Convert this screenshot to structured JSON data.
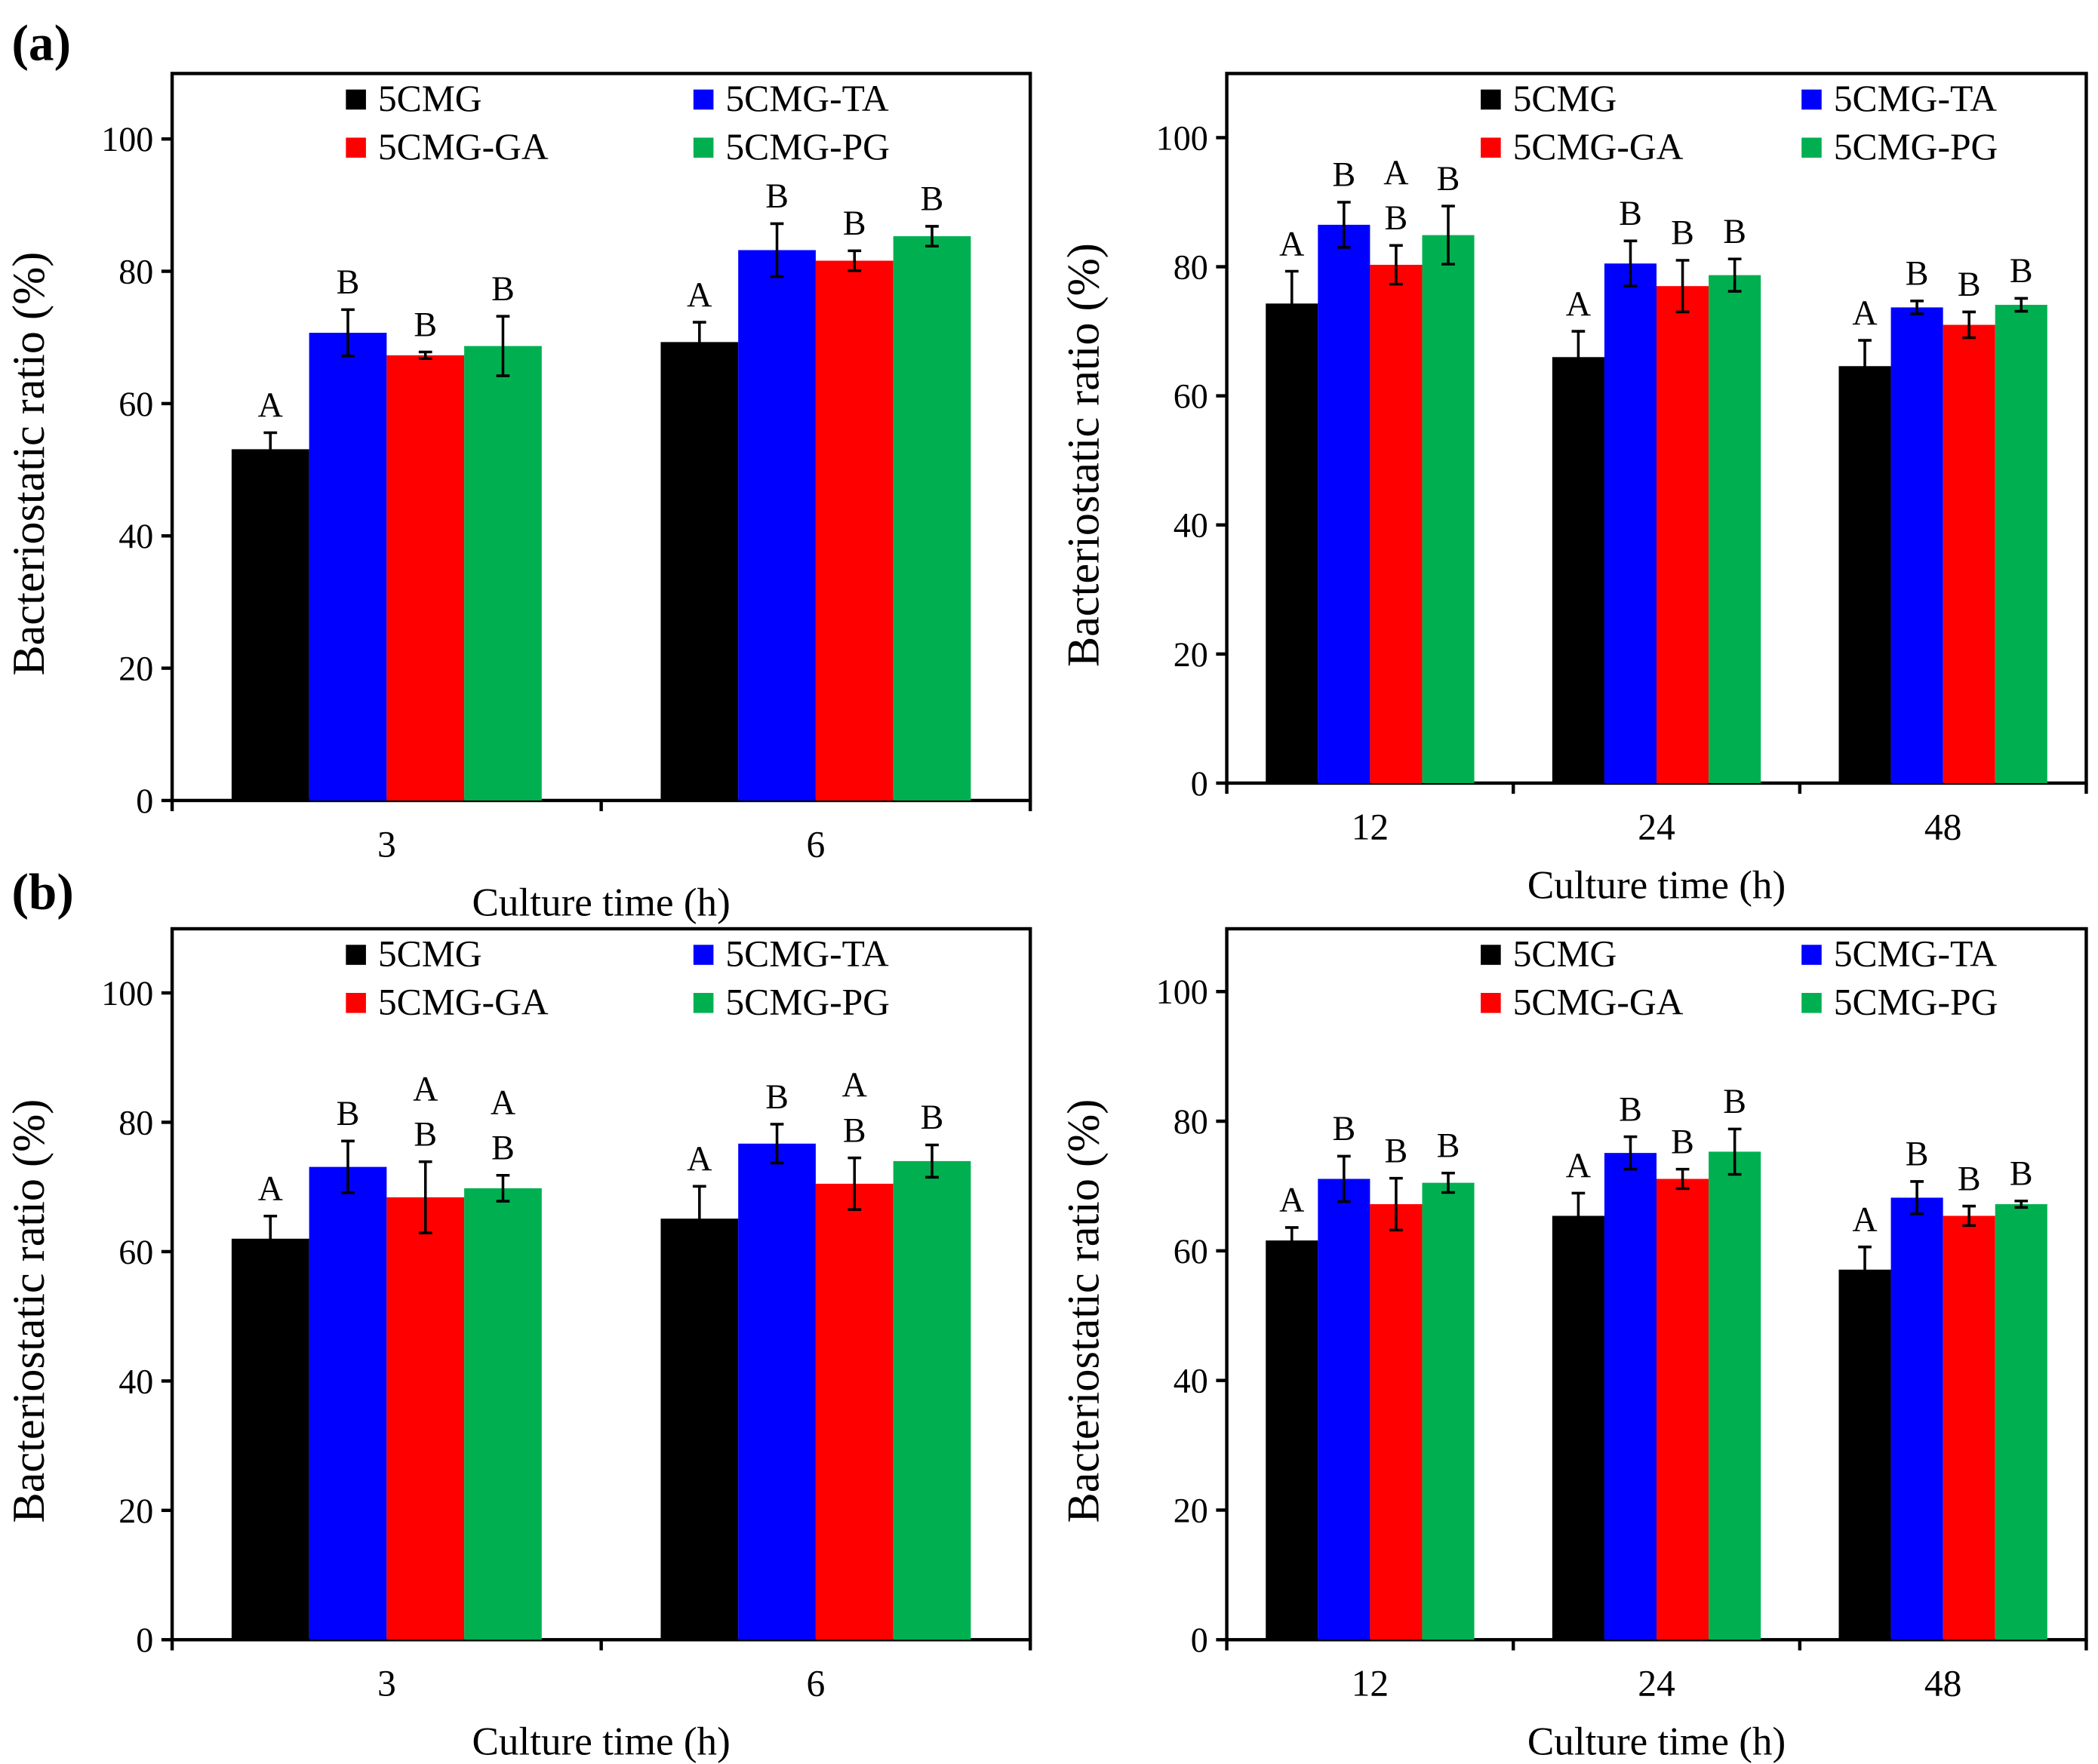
{
  "panel_labels": [
    "(a)",
    "(b)"
  ],
  "colors": {
    "5CMG": "#000000",
    "5CMG-TA": "#0000ff",
    "5CMG-GA": "#ff0000",
    "5CMG-PG": "#00b050"
  },
  "chart_data": [
    {
      "type": "bar",
      "panel": "(a)",
      "title": "",
      "xlabel": "Culture time (h)",
      "ylabel": "Bacteriostatic ratio (%)",
      "ylim": [
        0,
        110
      ],
      "yticks": [
        0,
        20,
        40,
        60,
        80,
        100
      ],
      "legend": "top",
      "categories": [
        "3",
        "6"
      ],
      "series": [
        {
          "name": "5CMG",
          "color": "#000000",
          "values": [
            53.1,
            69.3
          ],
          "errors": [
            2.5,
            3.0
          ],
          "letters": [
            [
              "A"
            ],
            [
              "A"
            ]
          ]
        },
        {
          "name": "5CMG-TA",
          "color": "#0000ff",
          "values": [
            70.7,
            83.2
          ],
          "errors": [
            3.5,
            4.0
          ],
          "letters": [
            [
              "B"
            ],
            [
              "B"
            ]
          ]
        },
        {
          "name": "5CMG-GA",
          "color": "#ff0000",
          "values": [
            67.3,
            81.6
          ],
          "errors": [
            0.5,
            1.5
          ],
          "letters": [
            [
              "B"
            ],
            [
              "B"
            ]
          ]
        },
        {
          "name": "5CMG-PG",
          "color": "#00b050",
          "values": [
            68.7,
            85.3
          ],
          "errors": [
            4.5,
            1.5
          ],
          "letters": [
            [
              "B"
            ],
            [
              "B"
            ]
          ]
        }
      ]
    },
    {
      "type": "bar",
      "panel": "(a)",
      "title": "",
      "xlabel": "Culture time (h)",
      "ylabel": "Bacteriostatic ratio (%)",
      "ylim": [
        0,
        110
      ],
      "yticks": [
        0,
        20,
        40,
        60,
        80,
        100
      ],
      "legend": "top",
      "categories": [
        "12",
        "24",
        "48"
      ],
      "series": [
        {
          "name": "5CMG",
          "color": "#000000",
          "values": [
            74.3,
            66.0,
            64.6
          ],
          "errors": [
            5.0,
            4.0,
            4.0
          ],
          "letters": [
            [
              "A"
            ],
            [
              "A"
            ],
            [
              "A"
            ]
          ]
        },
        {
          "name": "5CMG-TA",
          "color": "#0000ff",
          "values": [
            86.5,
            80.5,
            73.7
          ],
          "errors": [
            3.5,
            3.5,
            1.0
          ],
          "letters": [
            [
              "B"
            ],
            [
              "B"
            ],
            [
              "B"
            ]
          ]
        },
        {
          "name": "5CMG-GA",
          "color": "#ff0000",
          "values": [
            80.3,
            77.0,
            71.0
          ],
          "errors": [
            3.0,
            4.0,
            2.0
          ],
          "letters": [
            [
              "A",
              "B"
            ],
            [
              "B"
            ],
            [
              "B"
            ]
          ]
        },
        {
          "name": "5CMG-PG",
          "color": "#00b050",
          "values": [
            84.9,
            78.7,
            74.1
          ],
          "errors": [
            4.5,
            2.5,
            1.0
          ],
          "letters": [
            [
              "B"
            ],
            [
              "B"
            ],
            [
              "B"
            ]
          ]
        }
      ]
    },
    {
      "type": "bar",
      "panel": "(b)",
      "title": "",
      "xlabel": "Culture time (h)",
      "ylabel": "Bacteriostatic ratio (%)",
      "ylim": [
        0,
        110
      ],
      "yticks": [
        0,
        20,
        40,
        60,
        80,
        100
      ],
      "legend": "top",
      "categories": [
        "3",
        "6"
      ],
      "series": [
        {
          "name": "5CMG",
          "color": "#000000",
          "values": [
            62.0,
            65.1
          ],
          "errors": [
            3.5,
            5.0
          ],
          "letters": [
            [
              "A"
            ],
            [
              "A"
            ]
          ]
        },
        {
          "name": "5CMG-TA",
          "color": "#0000ff",
          "values": [
            73.1,
            76.7
          ],
          "errors": [
            4.0,
            3.0
          ],
          "letters": [
            [
              "B"
            ],
            [
              "B"
            ]
          ]
        },
        {
          "name": "5CMG-GA",
          "color": "#ff0000",
          "values": [
            68.4,
            70.5
          ],
          "errors": [
            5.5,
            4.0
          ],
          "letters": [
            [
              "A",
              "B"
            ],
            [
              "A",
              "B"
            ]
          ]
        },
        {
          "name": "5CMG-PG",
          "color": "#00b050",
          "values": [
            69.8,
            74.0
          ],
          "errors": [
            2.0,
            2.5
          ],
          "letters": [
            [
              "A",
              "B"
            ],
            [
              "B"
            ]
          ]
        }
      ]
    },
    {
      "type": "bar",
      "panel": "(b)",
      "title": "",
      "xlabel": "Culture time (h)",
      "ylabel": "Bacteriostatic ratio (%)",
      "ylim": [
        0,
        110
      ],
      "yticks": [
        0,
        20,
        40,
        60,
        80,
        100
      ],
      "legend": "top",
      "categories": [
        "12",
        "24",
        "48"
      ],
      "series": [
        {
          "name": "5CMG",
          "color": "#000000",
          "values": [
            61.6,
            65.4,
            57.1
          ],
          "errors": [
            2.0,
            3.5,
            3.5
          ],
          "letters": [
            [
              "A"
            ],
            [
              "A"
            ],
            [
              "A"
            ]
          ]
        },
        {
          "name": "5CMG-TA",
          "color": "#0000ff",
          "values": [
            71.1,
            75.1,
            68.2
          ],
          "errors": [
            3.5,
            2.5,
            2.5
          ],
          "letters": [
            [
              "B"
            ],
            [
              "B"
            ],
            [
              "B"
            ]
          ]
        },
        {
          "name": "5CMG-GA",
          "color": "#ff0000",
          "values": [
            67.2,
            71.1,
            65.4
          ],
          "errors": [
            4.0,
            1.5,
            1.5
          ],
          "letters": [
            [
              "B"
            ],
            [
              "B"
            ],
            [
              "B"
            ]
          ]
        },
        {
          "name": "5CMG-PG",
          "color": "#00b050",
          "values": [
            70.5,
            75.3,
            67.2
          ],
          "errors": [
            1.5,
            3.5,
            0.5
          ],
          "letters": [
            [
              "B"
            ],
            [
              "B"
            ],
            [
              "B"
            ]
          ]
        }
      ]
    }
  ]
}
